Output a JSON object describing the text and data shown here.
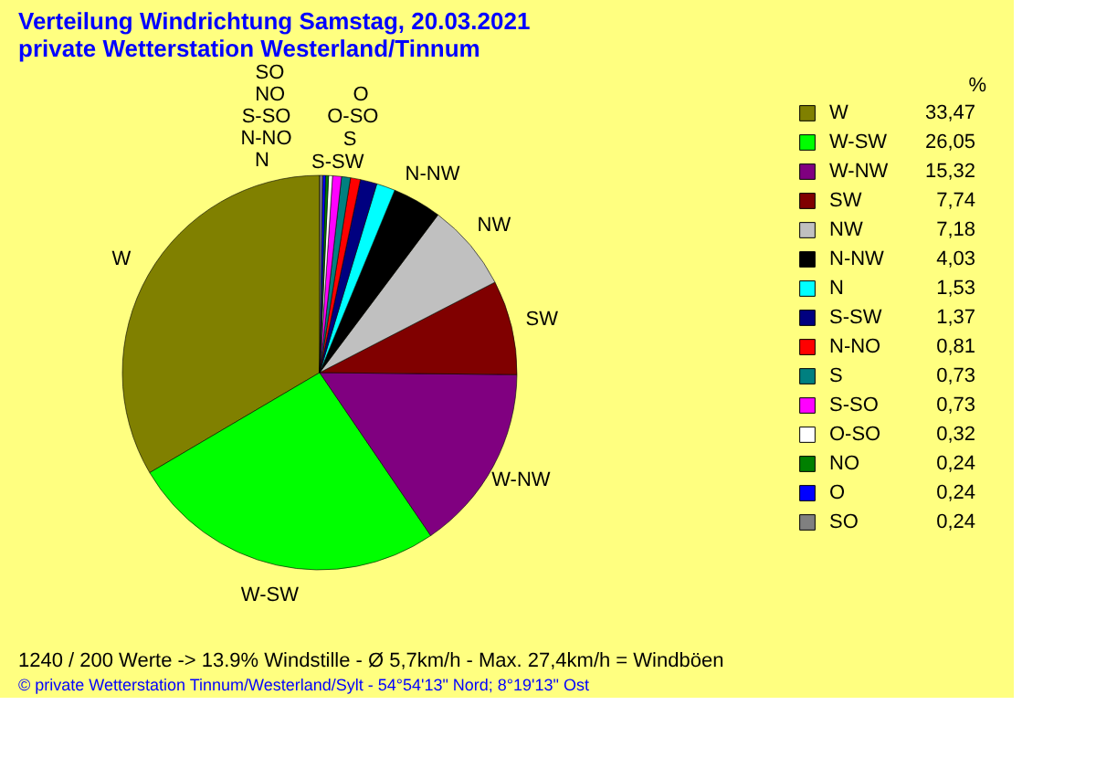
{
  "chart_data": {
    "type": "pie",
    "title": "Verteilung Windrichtung   Samstag, 20.03.2021",
    "subtitle": "private Wetterstation Westerland/Tinnum",
    "legend_title": "%",
    "legend": "right",
    "categories": [
      "W",
      "W-SW",
      "W-NW",
      "SW",
      "NW",
      "N-NW",
      "N",
      "S-SW",
      "N-NO",
      "S",
      "S-SO",
      "O-SO",
      "NO",
      "O",
      "SO"
    ],
    "values": [
      33.47,
      26.05,
      15.32,
      7.74,
      7.18,
      4.03,
      1.53,
      1.37,
      0.81,
      0.73,
      0.73,
      0.32,
      0.24,
      0.24,
      0.24
    ],
    "value_labels": [
      "33,47",
      "26,05",
      "15,32",
      "7,74",
      "7,18",
      "4,03",
      "1,53",
      "1,37",
      "0,81",
      "0,73",
      "0,73",
      "0,32",
      "0,24",
      "0,24",
      "0,24"
    ],
    "colors": [
      "#808000",
      "#00ff00",
      "#800080",
      "#800000",
      "#c0c0c0",
      "#000000",
      "#00ffff",
      "#000080",
      "#ff0000",
      "#008080",
      "#ff00ff",
      "#ffffff",
      "#008000",
      "#0000ff",
      "#808080"
    ],
    "annotations": [
      "1240 / 200 Werte  -> 13.9% Windstille   -   Ø 5,7km/h  -  Max. 27,4km/h = Windböen",
      "© private Wetterstation Tinnum/Westerland/Sylt  -  54°54'13\" Nord; 8°19'13\" Ost"
    ]
  }
}
